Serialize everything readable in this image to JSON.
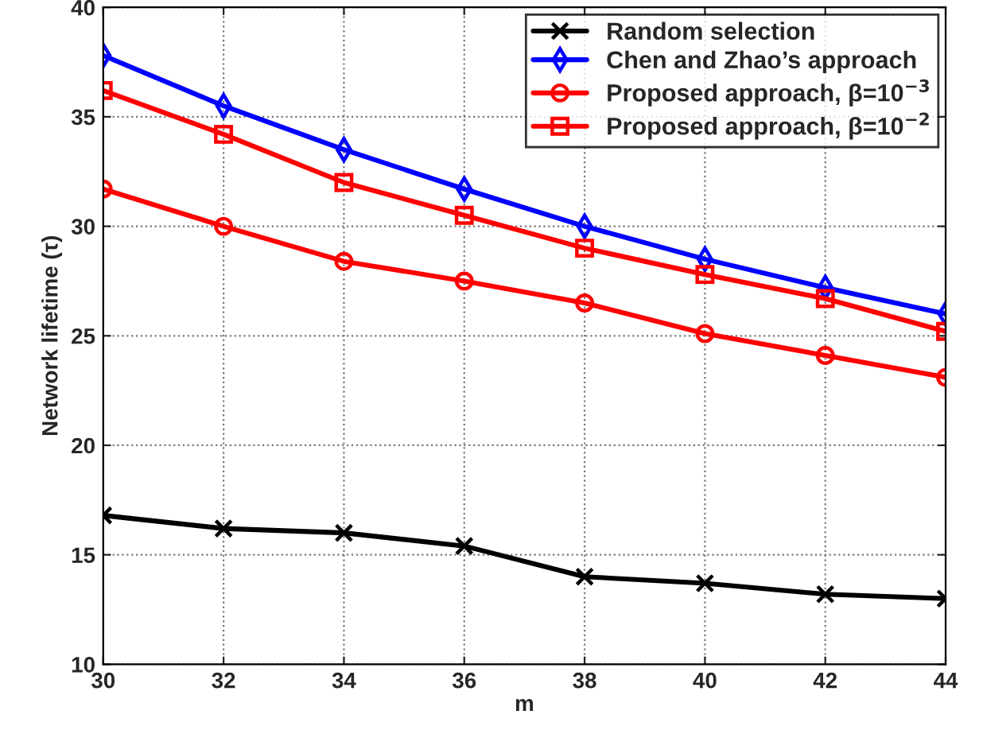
{
  "chart_data": {
    "type": "line",
    "xlabel": "m",
    "ylabel": "Network lifetime (τ)",
    "x": [
      30,
      32,
      34,
      36,
      38,
      40,
      42,
      44
    ],
    "series": [
      {
        "name": "Random selection",
        "color": "#000000",
        "marker": "cross",
        "values": [
          16.8,
          16.2,
          16.0,
          15.4,
          14.0,
          13.7,
          13.2,
          13.0
        ]
      },
      {
        "name": "Chen and Zhao’s approach",
        "color": "#0000ff",
        "marker": "diamond",
        "values": [
          37.8,
          35.5,
          33.5,
          31.7,
          30.0,
          28.5,
          27.2,
          26.0
        ]
      },
      {
        "name": "Proposed approach, β=10$^{−3}$",
        "color": "#ff0000",
        "marker": "circle",
        "values": [
          31.7,
          30.0,
          28.4,
          27.5,
          26.5,
          25.1,
          24.1,
          23.1
        ]
      },
      {
        "name": "Proposed approach, β=10$^{−2}$",
        "color": "#ff0000",
        "marker": "square",
        "values": [
          36.2,
          34.2,
          32.0,
          30.5,
          29.0,
          27.8,
          26.7,
          25.2
        ]
      }
    ],
    "xlim": [
      30,
      44
    ],
    "xticks": [
      30,
      32,
      34,
      36,
      38,
      40,
      42,
      44
    ],
    "ylim": [
      10,
      40
    ],
    "yticks": [
      10,
      15,
      20,
      25,
      30,
      35,
      40
    ],
    "grid": true,
    "legend": "top right",
    "line_style": "solid"
  }
}
